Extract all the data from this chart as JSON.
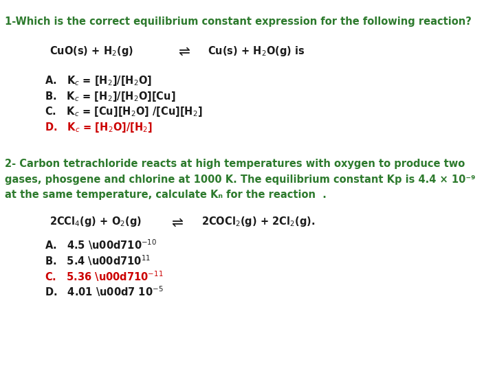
{
  "bg_color": "#ffffff",
  "green": "#2d7a2d",
  "black": "#1a1a1a",
  "red": "#cc0000",
  "fs_title": 10.5,
  "fs_body": 10.5,
  "fs_eq": 10.5
}
